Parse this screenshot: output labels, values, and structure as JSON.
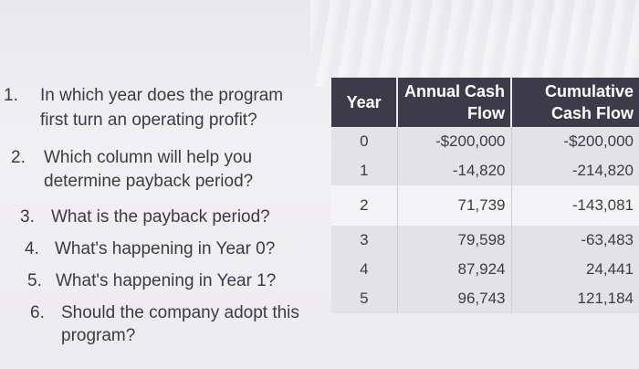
{
  "questions": [
    {
      "num": "1.",
      "lines": [
        "In which year does the program",
        "first turn an operating profit?"
      ]
    },
    {
      "num": "2.",
      "lines": [
        "Which column will help you",
        "determine payback period?"
      ]
    },
    {
      "num": "3.",
      "lines": [
        "What is the payback period?"
      ]
    },
    {
      "num": "4.",
      "lines": [
        "What's happening in Year 0?"
      ]
    },
    {
      "num": "5.",
      "lines": [
        "What's happening in Year 1?"
      ]
    },
    {
      "num": "6.",
      "lines": [
        "Should the company adopt this",
        "program?"
      ]
    }
  ],
  "table": {
    "headers": {
      "year": "Year",
      "annual_1": "Annual Cash",
      "annual_2": "Flow",
      "cum_1": "Cumulative",
      "cum_2": "Cash Flow"
    },
    "rows": [
      {
        "year": "0",
        "annual": "-$200,000",
        "cumulative": "-$200,000"
      },
      {
        "year": "1",
        "annual": "-14,820",
        "cumulative": "-214,820"
      },
      {
        "year": "2",
        "annual": "71,739",
        "cumulative": "-143,081"
      },
      {
        "year": "3",
        "annual": "79,598",
        "cumulative": "-63,483"
      },
      {
        "year": "4",
        "annual": "87,924",
        "cumulative": "24,441"
      },
      {
        "year": "5",
        "annual": "96,743",
        "cumulative": "121,184"
      }
    ]
  },
  "colors": {
    "header_bg": "#3d3b4a",
    "row_odd": "#e3e2e7",
    "row_even": "#f4f3f6"
  }
}
